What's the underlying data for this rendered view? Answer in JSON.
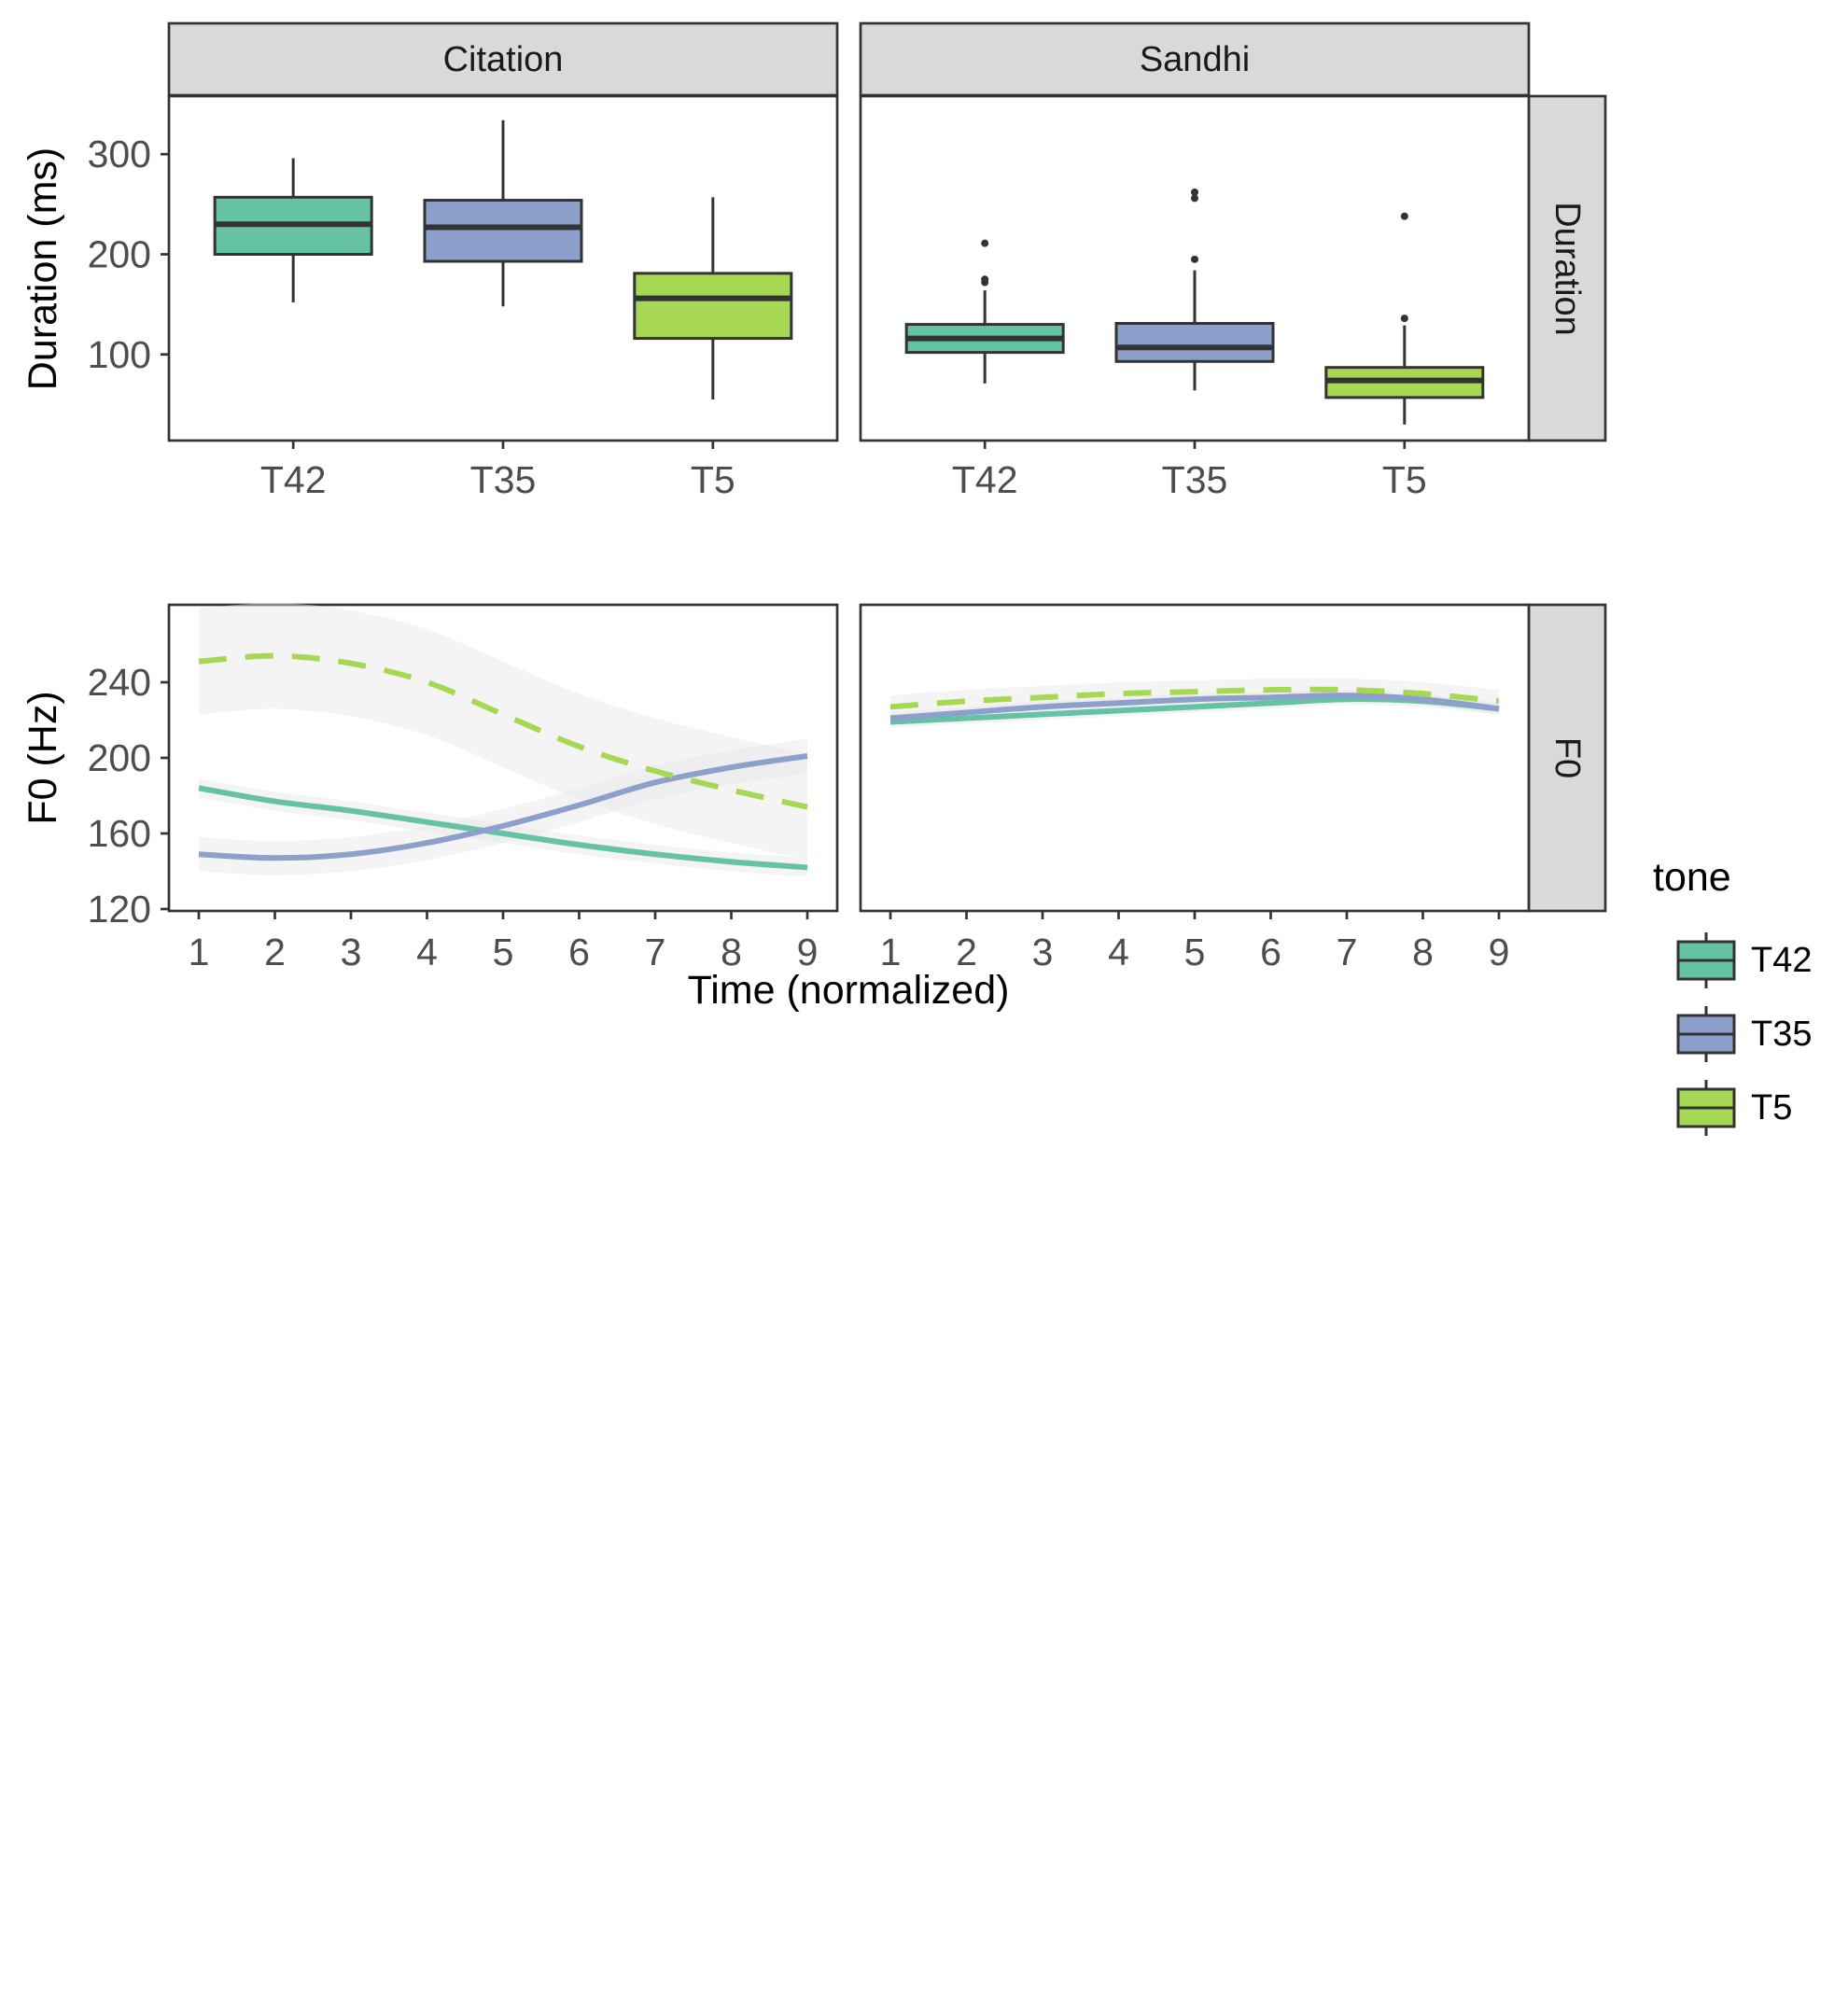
{
  "chart_data": {
    "type": "facet",
    "columns": [
      "Citation",
      "Sandhi"
    ],
    "rows": [
      "Duration",
      "F0"
    ],
    "xlabel": "Time (normalized)",
    "legend": {
      "title": "tone",
      "placement": "right",
      "entries": [
        {
          "name": "T42",
          "color": "#66c2a5",
          "linetype": "solid"
        },
        {
          "name": "T35",
          "color": "#8da0cb",
          "linetype": "solid"
        },
        {
          "name": "T5",
          "color": "#a6d854",
          "linetype": "dashed"
        }
      ]
    },
    "duration": {
      "type": "boxplot",
      "ylabel": "Duration (ms)",
      "categories": [
        "T42",
        "T35",
        "T5"
      ],
      "yticks": [
        100,
        200,
        300
      ],
      "ylim": [
        14,
        358
      ],
      "panels": [
        {
          "facet": "Citation",
          "boxes": [
            {
              "tone": "T42",
              "min": 152,
              "q1": 200,
              "median": 230,
              "q3": 257,
              "max": 296,
              "outliers": []
            },
            {
              "tone": "T35",
              "min": 148,
              "q1": 193,
              "median": 227,
              "q3": 254,
              "max": 334,
              "outliers": []
            },
            {
              "tone": "T5",
              "min": 55,
              "q1": 116,
              "median": 156,
              "q3": 181,
              "max": 257,
              "outliers": []
            }
          ]
        },
        {
          "facet": "Sandhi",
          "boxes": [
            {
              "tone": "T42",
              "min": 71,
              "q1": 102,
              "median": 116,
              "q3": 130,
              "max": 164,
              "outliers": [
                172,
                175,
                211
              ]
            },
            {
              "tone": "T35",
              "min": 64,
              "q1": 93,
              "median": 107,
              "q3": 131,
              "max": 184,
              "outliers": [
                195,
                256,
                262
              ]
            },
            {
              "tone": "T5",
              "min": 30,
              "q1": 57,
              "median": 74,
              "q3": 87,
              "max": 129,
              "outliers": [
                136,
                238
              ]
            }
          ]
        }
      ]
    },
    "f0": {
      "type": "line",
      "ylabel": "F0 (Hz)",
      "x": [
        1,
        2,
        3,
        4,
        5,
        6,
        7,
        8,
        9
      ],
      "xticks": [
        1,
        2,
        3,
        4,
        5,
        6,
        7,
        8,
        9
      ],
      "yticks": [
        120,
        160,
        200,
        240
      ],
      "ylim": [
        119,
        281
      ],
      "panels": [
        {
          "facet": "Citation",
          "series": [
            {
              "name": "T42",
              "values": [
                184,
                177,
                172,
                166,
                160,
                154,
                149,
                145,
                142
              ],
              "ci": 5
            },
            {
              "name": "T35",
              "values": [
                149,
                147,
                149,
                155,
                164,
                175,
                187,
                195,
                201
              ],
              "ci": 9
            },
            {
              "name": "T5",
              "values": [
                251,
                254,
                250,
                240,
                223,
                206,
                193,
                183,
                174
              ],
              "ci": 28
            }
          ]
        },
        {
          "facet": "Sandhi",
          "series": [
            {
              "name": "T42",
              "values": [
                219,
                221,
                223,
                225,
                227,
                229,
                231,
                230,
                226
              ],
              "ci": 3
            },
            {
              "name": "T35",
              "values": [
                221,
                224,
                227,
                229,
                231,
                232,
                233,
                231,
                226
              ],
              "ci": 3
            },
            {
              "name": "T5",
              "values": [
                227,
                230,
                232,
                234,
                235,
                236,
                236,
                234,
                230
              ],
              "ci": 6
            }
          ]
        }
      ]
    }
  }
}
